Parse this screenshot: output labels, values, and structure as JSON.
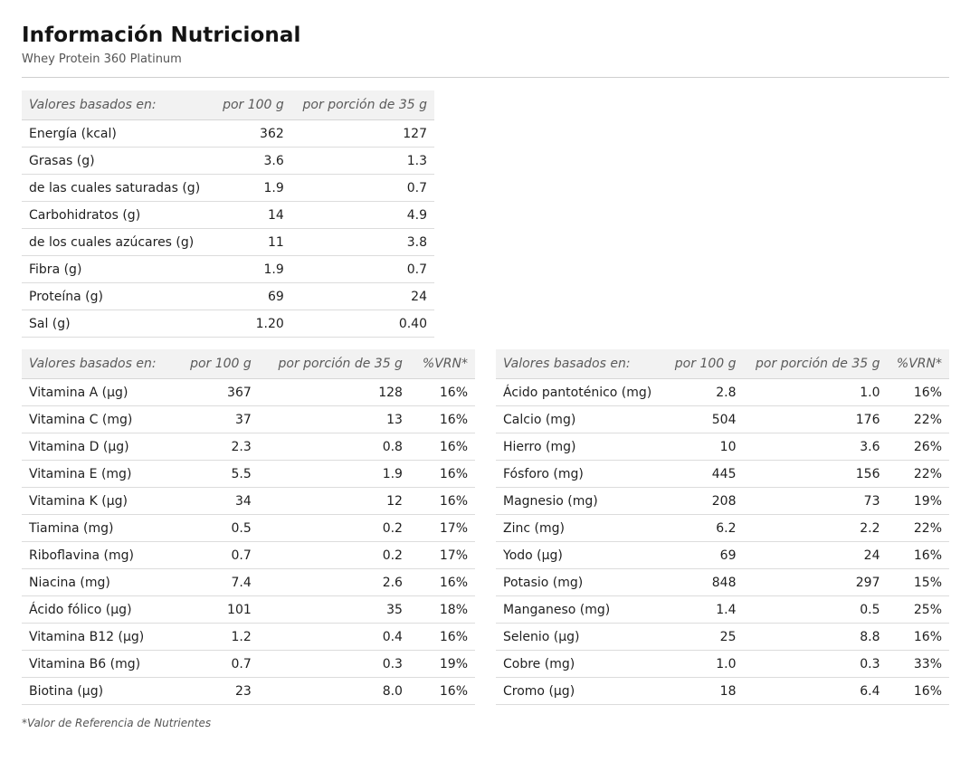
{
  "page": {
    "title": "Información Nutricional",
    "subtitle": "Whey Protein 360 Platinum",
    "footnote": "*Valor de Referencia de Nutrientes"
  },
  "macros": {
    "headers": [
      "Valores basados en:",
      "por 100 g",
      "por porción de 35 g"
    ],
    "rows": [
      [
        "Energía (kcal)",
        "362",
        "127"
      ],
      [
        "Grasas (g)",
        "3.6",
        "1.3"
      ],
      [
        "de las cuales saturadas (g)",
        "1.9",
        "0.7"
      ],
      [
        "Carbohidratos (g)",
        "14",
        "4.9"
      ],
      [
        "de los cuales azúcares (g)",
        "11",
        "3.8"
      ],
      [
        "Fibra (g)",
        "1.9",
        "0.7"
      ],
      [
        "Proteína (g)",
        "69",
        "24"
      ],
      [
        "Sal (g)",
        "1.20",
        "0.40"
      ]
    ]
  },
  "vitamins": {
    "headers": [
      "Valores basados en:",
      "por 100 g",
      "por porción de 35 g",
      "%VRN*"
    ],
    "rows": [
      [
        "Vitamina A (µg)",
        "367",
        "128",
        "16%"
      ],
      [
        "Vitamina C (mg)",
        "37",
        "13",
        "16%"
      ],
      [
        "Vitamina D (µg)",
        "2.3",
        "0.8",
        "16%"
      ],
      [
        "Vitamina E (mg)",
        "5.5",
        "1.9",
        "16%"
      ],
      [
        "Vitamina K (µg)",
        "34",
        "12",
        "16%"
      ],
      [
        "Tiamina (mg)",
        "0.5",
        "0.2",
        "17%"
      ],
      [
        "Riboflavina (mg)",
        "0.7",
        "0.2",
        "17%"
      ],
      [
        "Niacina (mg)",
        "7.4",
        "2.6",
        "16%"
      ],
      [
        "Ácido fólico (µg)",
        "101",
        "35",
        "18%"
      ],
      [
        "Vitamina B12 (µg)",
        "1.2",
        "0.4",
        "16%"
      ],
      [
        "Vitamina B6 (mg)",
        "0.7",
        "0.3",
        "19%"
      ],
      [
        "Biotina (µg)",
        "23",
        "8.0",
        "16%"
      ]
    ]
  },
  "minerals": {
    "headers": [
      "Valores basados en:",
      "por 100 g",
      "por porción de 35 g",
      "%VRN*"
    ],
    "rows": [
      [
        "Ácido pantoténico (mg)",
        "2.8",
        "1.0",
        "16%"
      ],
      [
        "Calcio (mg)",
        "504",
        "176",
        "22%"
      ],
      [
        "Hierro (mg)",
        "10",
        "3.6",
        "26%"
      ],
      [
        "Fósforo (mg)",
        "445",
        "156",
        "22%"
      ],
      [
        "Magnesio (mg)",
        "208",
        "73",
        "19%"
      ],
      [
        "Zinc (mg)",
        "6.2",
        "2.2",
        "22%"
      ],
      [
        "Yodo (µg)",
        "69",
        "24",
        "16%"
      ],
      [
        "Potasio (mg)",
        "848",
        "297",
        "15%"
      ],
      [
        "Manganeso (mg)",
        "1.4",
        "0.5",
        "25%"
      ],
      [
        "Selenio (µg)",
        "25",
        "8.8",
        "16%"
      ],
      [
        "Cobre (mg)",
        "1.0",
        "0.3",
        "33%"
      ],
      [
        "Cromo (µg)",
        "18",
        "6.4",
        "16%"
      ]
    ]
  }
}
